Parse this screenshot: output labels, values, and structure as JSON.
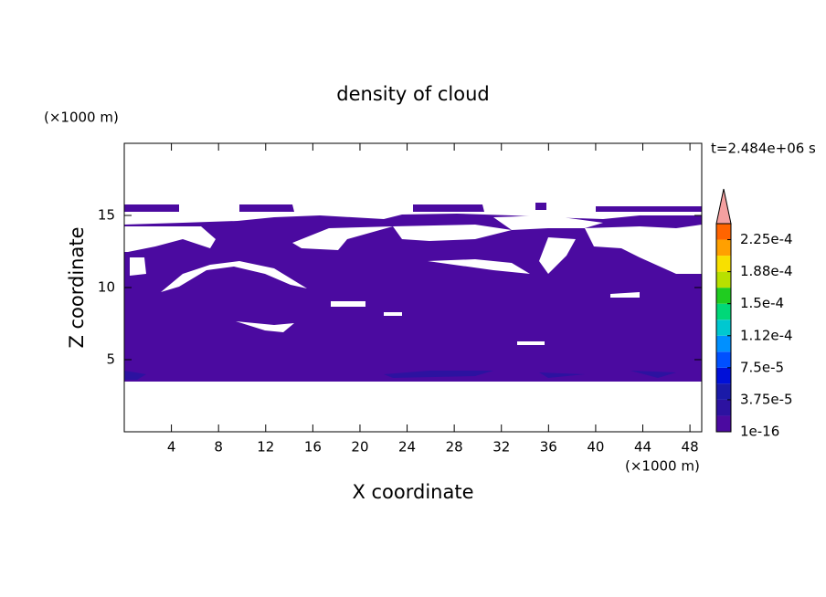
{
  "chart_data": {
    "type": "contour",
    "title": "density of cloud",
    "x_label": "X coordinate",
    "y_label": "Z coordinate",
    "x_unit": "(×1000 m)",
    "y_unit": "(×1000 m)",
    "annotation": "t=2.484e+06 s",
    "xlim": [
      0,
      49
    ],
    "ylim": [
      0,
      20
    ],
    "xticks": [
      4,
      8,
      12,
      16,
      20,
      24,
      28,
      32,
      36,
      40,
      44,
      48
    ],
    "yticks": [
      5,
      10,
      15
    ],
    "colorbar": {
      "levels": [
        1e-16,
        1.875e-05,
        3.75e-05,
        5.625e-05,
        7.5e-05,
        9.375e-05,
        0.0001125,
        0.00013125,
        0.00015,
        0.00016875,
        0.0001875,
        0.00020625,
        0.000225,
        0.00024375
      ],
      "colors": [
        "#4b0aa0",
        "#2c12a0",
        "#1a1aa8",
        "#0010d8",
        "#0050ff",
        "#0090ff",
        "#00c8d0",
        "#00d878",
        "#20cc20",
        "#b8e000",
        "#f8e000",
        "#ffa000",
        "#ff6400"
      ],
      "extend_color": "#f4a0a0",
      "ticks": [
        1e-16,
        {
          "value": 3.75e-05,
          "label": "3.75e-5"
        },
        {
          "value": 7.5e-05,
          "label": "7.5e-5"
        },
        {
          "value": 0.0001125,
          "label": "1.12e-4"
        },
        {
          "value": 0.00015,
          "label": "1.5e-4"
        },
        {
          "value": 0.0001875,
          "label": "1.88e-4"
        },
        {
          "value": 0.000225,
          "label": "2.25e-4"
        }
      ]
    }
  }
}
